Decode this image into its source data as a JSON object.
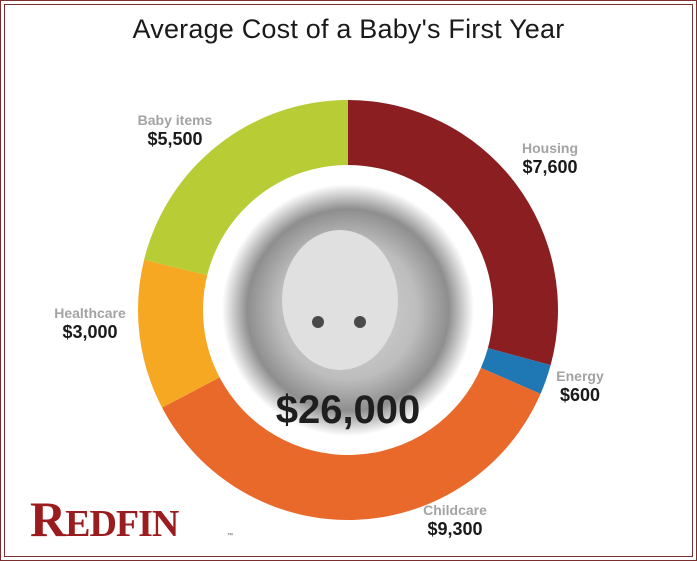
{
  "title": "Average Cost of a Baby's First Year",
  "center_total": "$26,000",
  "logo": {
    "first": "R",
    "rest": "EDFIN",
    "tm": "™",
    "color": "#9b1c1f"
  },
  "labels": {
    "housing": {
      "name": "Housing",
      "value": "$7,600"
    },
    "energy": {
      "name": "Energy",
      "value": "$600"
    },
    "childcare": {
      "name": "Childcare",
      "value": "$9,300"
    },
    "healthcare": {
      "name": "Healthcare",
      "value": "$3,000"
    },
    "baby_items": {
      "name": "Baby items",
      "value": "$5,500"
    }
  },
  "chart_data": {
    "type": "pie",
    "subtype": "donut",
    "title": "Average Cost of a Baby's First Year",
    "total": 26000,
    "center_label": "$26,000",
    "start_angle": "12 o'clock, clockwise",
    "categories": [
      "Housing",
      "Energy",
      "Childcare",
      "Healthcare",
      "Baby items"
    ],
    "values": [
      7600,
      600,
      9300,
      3000,
      5500
    ],
    "colors": [
      "#8a1e20",
      "#1f77b4",
      "#e8692a",
      "#f7a823",
      "#b8cc35"
    ],
    "value_labels": [
      "$7,600",
      "$600",
      "$9,300",
      "$3,000",
      "$5,500"
    ],
    "legend": "none (direct labels)"
  }
}
